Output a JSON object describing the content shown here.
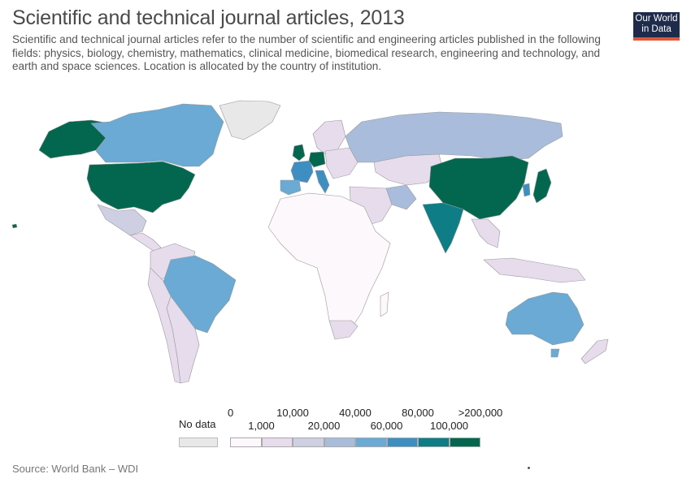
{
  "header": {
    "title": "Scientific and technical journal articles, 2013",
    "subtitle": "Scientific and technical journal articles refer to the number of scientific and engineering articles published in the following fields: physics, biology, chemistry, mathematics, clinical medicine, biomedical research, engineering and technology, and earth and space sciences. Location is allocated by the country of institution."
  },
  "logo": {
    "line1": "Our World",
    "line2": "in Data"
  },
  "legend": {
    "no_data_label": "No data",
    "no_data_color": "#e8e8e8",
    "top_ticks": [
      "0",
      "10,000",
      "40,000",
      "80,000",
      ">200,000"
    ],
    "bottom_ticks": [
      "1,000",
      "20,000",
      "60,000",
      "100,000"
    ],
    "bins": [
      {
        "from": "0",
        "to": "1,000",
        "color": "#fdf8fc"
      },
      {
        "from": "1,000",
        "to": "10,000",
        "color": "#e6dcec"
      },
      {
        "from": "10,000",
        "to": "20,000",
        "color": "#cfcfe3"
      },
      {
        "from": "20,000",
        "to": "40,000",
        "color": "#a9bcdb"
      },
      {
        "from": "40,000",
        "to": "60,000",
        "color": "#6aaad4"
      },
      {
        "from": "60,000",
        "to": "80,000",
        "color": "#3d8fc2"
      },
      {
        "from": "80,000",
        "to": "100,000",
        "color": "#0e7d86"
      },
      {
        "from": "100,000",
        "to": ">200,000",
        "color": "#03674f"
      }
    ]
  },
  "map": {
    "regions": [
      {
        "name": "United States",
        "bin": 7
      },
      {
        "name": "Alaska",
        "bin": 7
      },
      {
        "name": "Canada",
        "bin": 4
      },
      {
        "name": "Greenland",
        "bin": -1
      },
      {
        "name": "Mexico",
        "bin": 2
      },
      {
        "name": "Brazil",
        "bin": 4
      },
      {
        "name": "Argentina",
        "bin": 1
      },
      {
        "name": "South America other",
        "bin": 1
      },
      {
        "name": "Russia",
        "bin": 3
      },
      {
        "name": "China",
        "bin": 7
      },
      {
        "name": "India",
        "bin": 6
      },
      {
        "name": "Japan",
        "bin": 7
      },
      {
        "name": "Australia",
        "bin": 4
      },
      {
        "name": "Germany",
        "bin": 7
      },
      {
        "name": "United Kingdom",
        "bin": 7
      },
      {
        "name": "France",
        "bin": 5
      },
      {
        "name": "Italy",
        "bin": 5
      },
      {
        "name": "Spain",
        "bin": 4
      },
      {
        "name": "Iran",
        "bin": 3
      },
      {
        "name": "South Korea",
        "bin": 5
      },
      {
        "name": "Africa",
        "bin": 0
      },
      {
        "name": "South Africa",
        "bin": 1
      },
      {
        "name": "Middle East",
        "bin": 1
      },
      {
        "name": "Southeast Asia",
        "bin": 1
      },
      {
        "name": "New Zealand",
        "bin": 1
      }
    ]
  },
  "footer": {
    "source": "Source: World Bank – WDI"
  }
}
